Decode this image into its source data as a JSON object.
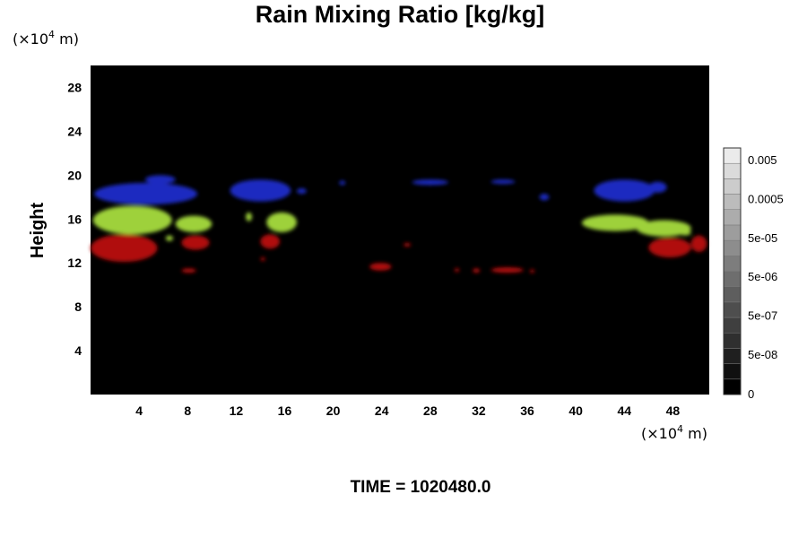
{
  "chart_data": {
    "type": "heatmap",
    "title": "Rain Mixing Ratio [kg/kg]",
    "ylabel": "Height",
    "x_unit": {
      "prefix": "(×10",
      "exp": "4",
      "suffix": " m)"
    },
    "y_unit": {
      "prefix": "(×10",
      "exp": "4",
      "suffix": " m)"
    },
    "xlim": [
      0,
      51
    ],
    "ylim": [
      0,
      30
    ],
    "x_ticks": [
      "4",
      "8",
      "12",
      "16",
      "20",
      "24",
      "28",
      "32",
      "36",
      "40",
      "44",
      "48"
    ],
    "y_ticks": [
      "4",
      "8",
      "12",
      "16",
      "20",
      "24",
      "28"
    ],
    "colorbar": {
      "labels": [
        "0.005",
        "0.0005",
        "5e-05",
        "5e-06",
        "5e-07",
        "5e-08",
        "0"
      ],
      "levels": 16
    },
    "colors": {
      "background": "#000000",
      "blue": "#1a2ac0",
      "green": "#9ed13a",
      "red": "#b01010"
    },
    "bands": [
      {
        "color": "blue",
        "cells": [
          [
            0.3,
            17.3,
            8.5,
            2.0
          ],
          [
            4.5,
            19.2,
            2.5,
            0.8
          ],
          [
            11.5,
            17.6,
            5.0,
            2.0
          ],
          [
            17.0,
            18.3,
            0.8,
            0.5
          ],
          [
            20.5,
            19.1,
            0.5,
            0.4
          ],
          [
            26.5,
            19.1,
            3.0,
            0.5
          ],
          [
            33.0,
            19.2,
            2.0,
            0.4
          ],
          [
            37.0,
            17.7,
            0.8,
            0.6
          ],
          [
            41.5,
            17.6,
            5.0,
            2.0
          ],
          [
            46.0,
            18.4,
            1.5,
            1.0
          ]
        ]
      },
      {
        "color": "green",
        "cells": [
          [
            0.2,
            14.6,
            6.5,
            2.6
          ],
          [
            7.0,
            14.8,
            3.0,
            1.5
          ],
          [
            14.5,
            14.8,
            2.5,
            1.8
          ],
          [
            12.8,
            15.8,
            0.5,
            0.8
          ],
          [
            6.2,
            14.0,
            0.6,
            0.5
          ],
          [
            40.5,
            14.9,
            5.5,
            1.5
          ],
          [
            45.0,
            14.4,
            4.5,
            1.5
          ],
          [
            48.5,
            14.5,
            1.0,
            0.5
          ]
        ]
      },
      {
        "color": "red",
        "cells": [
          [
            0.0,
            12.1,
            5.5,
            2.5
          ],
          [
            7.5,
            13.2,
            2.3,
            1.3
          ],
          [
            14.0,
            13.3,
            1.6,
            1.3
          ],
          [
            14.0,
            12.2,
            0.4,
            0.3
          ],
          [
            7.5,
            11.1,
            1.2,
            0.4
          ],
          [
            23.0,
            11.3,
            1.8,
            0.7
          ],
          [
            25.8,
            13.5,
            0.6,
            0.3
          ],
          [
            30.0,
            11.2,
            0.4,
            0.3
          ],
          [
            31.5,
            11.1,
            0.6,
            0.4
          ],
          [
            33.0,
            11.1,
            2.7,
            0.5
          ],
          [
            36.2,
            11.1,
            0.4,
            0.3
          ],
          [
            46.0,
            12.5,
            3.5,
            1.8
          ],
          [
            49.5,
            13.0,
            1.3,
            1.5
          ]
        ]
      }
    ]
  },
  "footer": {
    "time_label": "TIME = 1020480.0"
  }
}
